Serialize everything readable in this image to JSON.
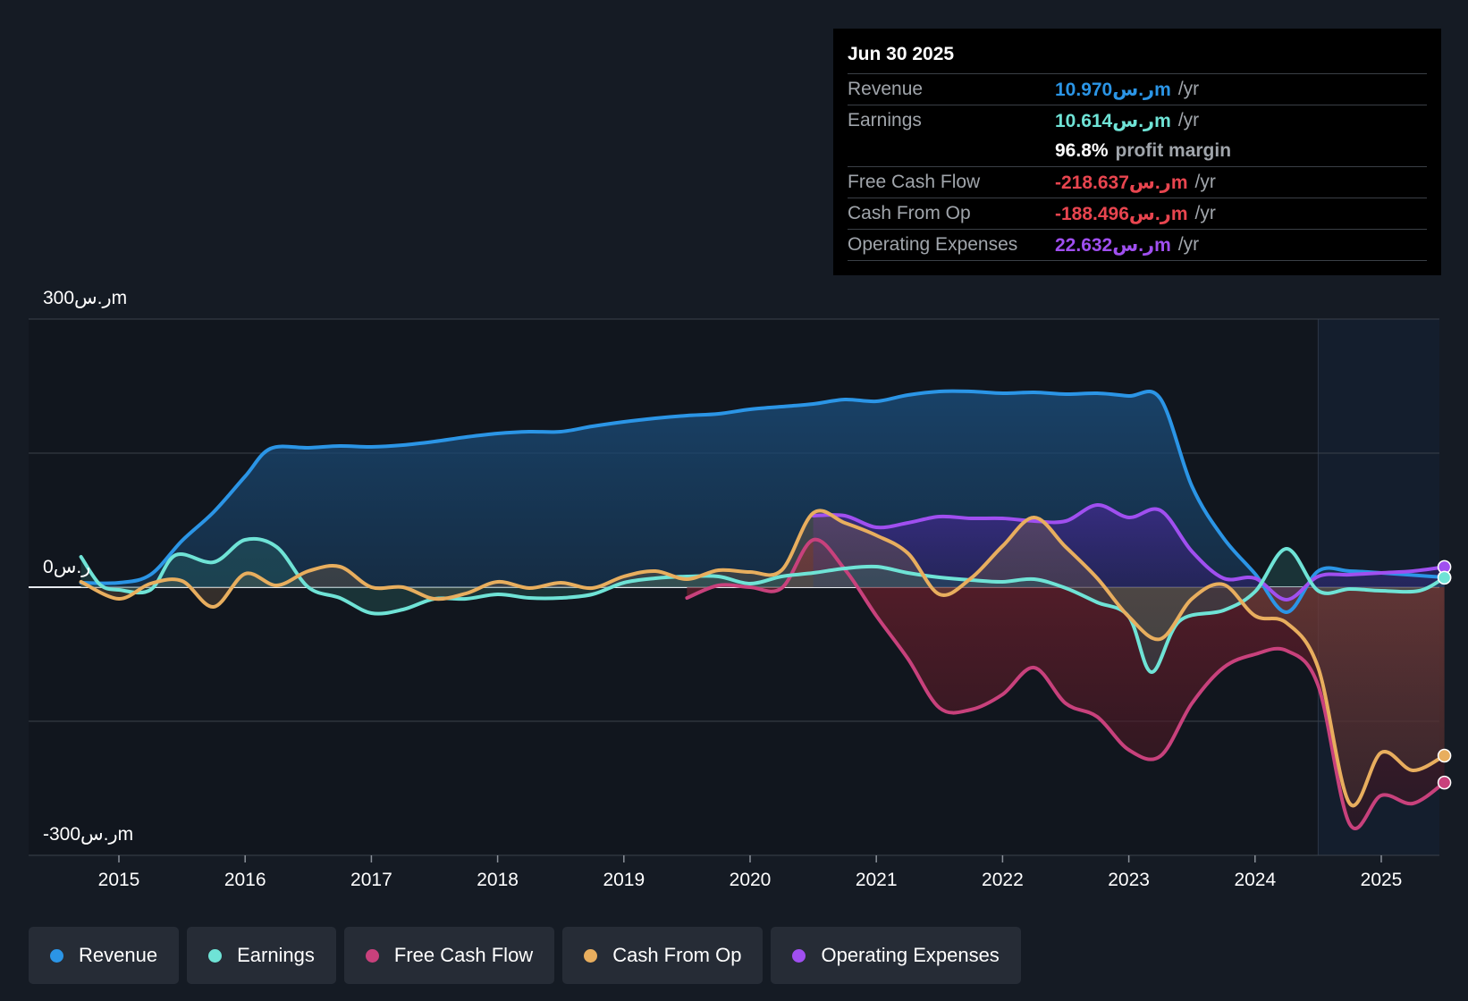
{
  "tooltip": {
    "date": "Jun 30 2025",
    "rows": [
      {
        "label": "Revenue",
        "value": "10.970ر.سm",
        "unit": "/yr",
        "color": "#2b95e6"
      },
      {
        "label": "Earnings",
        "value": "10.614ر.سm",
        "unit": "/yr",
        "color": "#6fe3d6"
      },
      {
        "label": "",
        "value": "96.8%",
        "unit": "profit margin",
        "color": "#ffffff"
      },
      {
        "label": "Free Cash Flow",
        "value": "-218.637ر.سm",
        "unit": "/yr",
        "color": "#e8454f"
      },
      {
        "label": "Cash From Op",
        "value": "-188.496ر.سm",
        "unit": "/yr",
        "color": "#e8454f"
      },
      {
        "label": "Operating Expenses",
        "value": "22.632ر.سm",
        "unit": "/yr",
        "color": "#a04ff0"
      }
    ]
  },
  "legend": [
    {
      "label": "Revenue",
      "color": "#2b95e6"
    },
    {
      "label": "Earnings",
      "color": "#6fe3d6"
    },
    {
      "label": "Free Cash Flow",
      "color": "#c8417c"
    },
    {
      "label": "Cash From Op",
      "color": "#e8ae5e"
    },
    {
      "label": "Operating Expenses",
      "color": "#a04ff0"
    }
  ],
  "chart_data": {
    "type": "line",
    "title": "",
    "xlabel": "",
    "ylabel": "",
    "ylim": [
      -300,
      300
    ],
    "xlim": [
      2014.3,
      2025.5
    ],
    "y_tick_labels": {
      "top": "300ر.سm",
      "zero": "0ر.س",
      "bottom": "-300ر.سm"
    },
    "x_ticks": [
      2015,
      2016,
      2017,
      2018,
      2019,
      2020,
      2021,
      2022,
      2023,
      2024,
      2025
    ],
    "x_tick_labels": [
      "2015",
      "2016",
      "2017",
      "2018",
      "2019",
      "2020",
      "2021",
      "2022",
      "2023",
      "2024",
      "2025"
    ],
    "forecast_start": 2024.5,
    "series": [
      {
        "name": "Revenue",
        "color": "#2b95e6",
        "points": [
          [
            2014.7,
            5
          ],
          [
            2015,
            5
          ],
          [
            2015.25,
            14
          ],
          [
            2015.5,
            52
          ],
          [
            2015.75,
            84
          ],
          [
            2016,
            124
          ],
          [
            2016.2,
            155
          ],
          [
            2016.5,
            156
          ],
          [
            2016.75,
            158
          ],
          [
            2017,
            157
          ],
          [
            2017.25,
            159
          ],
          [
            2017.5,
            163
          ],
          [
            2017.75,
            168
          ],
          [
            2018,
            172
          ],
          [
            2018.25,
            174
          ],
          [
            2018.5,
            174
          ],
          [
            2018.75,
            180
          ],
          [
            2019,
            185
          ],
          [
            2019.25,
            189
          ],
          [
            2019.5,
            192
          ],
          [
            2019.75,
            194
          ],
          [
            2020,
            199
          ],
          [
            2020.25,
            202
          ],
          [
            2020.5,
            205
          ],
          [
            2020.75,
            210
          ],
          [
            2021,
            208
          ],
          [
            2021.25,
            215
          ],
          [
            2021.5,
            219
          ],
          [
            2021.75,
            219
          ],
          [
            2022,
            217
          ],
          [
            2022.25,
            218
          ],
          [
            2022.5,
            216
          ],
          [
            2022.75,
            217
          ],
          [
            2023,
            214
          ],
          [
            2023.25,
            211
          ],
          [
            2023.5,
            113
          ],
          [
            2023.75,
            55
          ],
          [
            2024,
            15
          ],
          [
            2024.25,
            -28
          ],
          [
            2024.5,
            18
          ],
          [
            2024.75,
            18
          ],
          [
            2025,
            16
          ],
          [
            2025.5,
            10.97
          ]
        ]
      },
      {
        "name": "Earnings",
        "color": "#6fe3d6",
        "points": [
          [
            2014.7,
            34
          ],
          [
            2014.85,
            3
          ],
          [
            2015,
            -3
          ],
          [
            2015.25,
            -3
          ],
          [
            2015.45,
            36
          ],
          [
            2015.75,
            28
          ],
          [
            2016,
            53
          ],
          [
            2016.25,
            45
          ],
          [
            2016.5,
            0
          ],
          [
            2016.75,
            -12
          ],
          [
            2017,
            -29
          ],
          [
            2017.25,
            -25
          ],
          [
            2017.5,
            -13
          ],
          [
            2017.75,
            -13
          ],
          [
            2018,
            -8
          ],
          [
            2018.25,
            -12
          ],
          [
            2018.5,
            -12
          ],
          [
            2018.75,
            -8
          ],
          [
            2019,
            5
          ],
          [
            2019.25,
            10
          ],
          [
            2019.5,
            12
          ],
          [
            2019.75,
            12
          ],
          [
            2020,
            4
          ],
          [
            2020.25,
            12
          ],
          [
            2020.5,
            16
          ],
          [
            2020.75,
            21
          ],
          [
            2021,
            23
          ],
          [
            2021.25,
            16
          ],
          [
            2021.5,
            11
          ],
          [
            2021.75,
            8
          ],
          [
            2022,
            6
          ],
          [
            2022.25,
            9
          ],
          [
            2022.5,
            -1
          ],
          [
            2022.75,
            -17
          ],
          [
            2023,
            -33
          ],
          [
            2023.18,
            -95
          ],
          [
            2023.4,
            -38
          ],
          [
            2023.75,
            -26
          ],
          [
            2024,
            -5
          ],
          [
            2024.25,
            43
          ],
          [
            2024.5,
            -4
          ],
          [
            2024.75,
            -2
          ],
          [
            2025,
            -4
          ],
          [
            2025.3,
            -4
          ],
          [
            2025.5,
            10.614
          ]
        ]
      },
      {
        "name": "Free Cash Flow",
        "color": "#c8417c",
        "points": [
          [
            2019.5,
            -12
          ],
          [
            2019.75,
            2
          ],
          [
            2020,
            0
          ],
          [
            2020.25,
            -1
          ],
          [
            2020.5,
            53
          ],
          [
            2020.75,
            20
          ],
          [
            2021,
            -32
          ],
          [
            2021.25,
            -80
          ],
          [
            2021.5,
            -135
          ],
          [
            2021.75,
            -137
          ],
          [
            2022,
            -120
          ],
          [
            2022.25,
            -90
          ],
          [
            2022.5,
            -130
          ],
          [
            2022.75,
            -145
          ],
          [
            2023,
            -182
          ],
          [
            2023.25,
            -189
          ],
          [
            2023.5,
            -130
          ],
          [
            2023.75,
            -90
          ],
          [
            2024,
            -75
          ],
          [
            2024.25,
            -71
          ],
          [
            2024.5,
            -110
          ],
          [
            2024.75,
            -265
          ],
          [
            2025,
            -233
          ],
          [
            2025.25,
            -242
          ],
          [
            2025.5,
            -218.637
          ]
        ]
      },
      {
        "name": "Cash From Op",
        "color": "#e8ae5e",
        "points": [
          [
            2014.7,
            6
          ],
          [
            2015,
            -13
          ],
          [
            2015.25,
            4
          ],
          [
            2015.5,
            7
          ],
          [
            2015.75,
            -22
          ],
          [
            2016,
            15
          ],
          [
            2016.25,
            2
          ],
          [
            2016.5,
            18
          ],
          [
            2016.75,
            23
          ],
          [
            2017,
            0
          ],
          [
            2017.25,
            0
          ],
          [
            2017.5,
            -13
          ],
          [
            2017.75,
            -7
          ],
          [
            2018,
            6
          ],
          [
            2018.25,
            -1
          ],
          [
            2018.5,
            5
          ],
          [
            2018.75,
            -1
          ],
          [
            2019,
            12
          ],
          [
            2019.25,
            18
          ],
          [
            2019.5,
            9
          ],
          [
            2019.75,
            19
          ],
          [
            2020,
            17
          ],
          [
            2020.25,
            19
          ],
          [
            2020.5,
            83
          ],
          [
            2020.75,
            72
          ],
          [
            2021,
            58
          ],
          [
            2021.25,
            38
          ],
          [
            2021.5,
            -8
          ],
          [
            2021.75,
            10
          ],
          [
            2022,
            46
          ],
          [
            2022.25,
            78
          ],
          [
            2022.5,
            45
          ],
          [
            2022.75,
            10
          ],
          [
            2023,
            -33
          ],
          [
            2023.25,
            -58
          ],
          [
            2023.5,
            -13
          ],
          [
            2023.75,
            3
          ],
          [
            2024,
            -32
          ],
          [
            2024.25,
            -40
          ],
          [
            2024.5,
            -90
          ],
          [
            2024.75,
            -242
          ],
          [
            2025,
            -185
          ],
          [
            2025.25,
            -205
          ],
          [
            2025.5,
            -188.496
          ]
        ]
      },
      {
        "name": "Operating Expenses",
        "color": "#a04ff0",
        "points": [
          [
            2020.5,
            80
          ],
          [
            2020.75,
            80
          ],
          [
            2021,
            67
          ],
          [
            2021.25,
            72
          ],
          [
            2021.5,
            79
          ],
          [
            2021.75,
            77
          ],
          [
            2022,
            77
          ],
          [
            2022.25,
            74
          ],
          [
            2022.5,
            74
          ],
          [
            2022.75,
            92
          ],
          [
            2023,
            78
          ],
          [
            2023.25,
            86
          ],
          [
            2023.5,
            40
          ],
          [
            2023.75,
            10
          ],
          [
            2024,
            10
          ],
          [
            2024.25,
            -14
          ],
          [
            2024.5,
            12
          ],
          [
            2024.75,
            14
          ],
          [
            2025,
            16
          ],
          [
            2025.25,
            18
          ],
          [
            2025.5,
            22.632
          ]
        ]
      }
    ]
  }
}
